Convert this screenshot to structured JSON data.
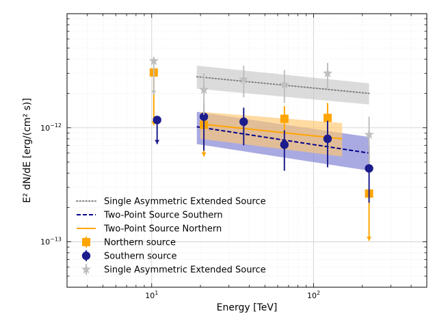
{
  "chart_data": {
    "type": "scatter",
    "title": "",
    "xlabel": "Energy [TeV]",
    "ylabel": "E² dN/dE [erg/(cm² s)]",
    "x_scale": "log",
    "y_scale": "log",
    "xlim": [
      3,
      500
    ],
    "ylim": [
      4e-14,
      1e-11
    ],
    "grid": true,
    "legend_position": "lower-left",
    "x_tick_labels": [
      {
        "value": 10,
        "base": "10",
        "exp": "1"
      },
      {
        "value": 100,
        "base": "10",
        "exp": "2"
      }
    ],
    "y_tick_labels": [
      {
        "value": 1e-13,
        "base": "10",
        "exp": "−13"
      },
      {
        "value": 1e-12,
        "base": "10",
        "exp": "−12"
      }
    ],
    "model_series": [
      {
        "id": "single-model",
        "name": "Single Asymmetric Extended Source",
        "style": "dotted",
        "color": "#808080",
        "band_color": "#c8c8c8",
        "x": [
          19,
          220
        ],
        "y": [
          2.8e-12,
          2e-12
        ],
        "band_low": [
          2.2e-12,
          1.6e-12
        ],
        "band_high": [
          3.5e-12,
          2.45e-12
        ]
      },
      {
        "id": "southern-model",
        "name": "Two-Point Source Southern",
        "style": "dashed",
        "color": "#00008b",
        "band_color": "#7c7cd2",
        "x": [
          19,
          220
        ],
        "y": [
          1.02e-12,
          6e-13
        ],
        "band_low": [
          7.2e-13,
          4.2e-13
        ],
        "band_high": [
          1.38e-12,
          8.3e-13
        ]
      },
      {
        "id": "northern-model",
        "name": "Two-Point Source Northern",
        "style": "solid",
        "color": "#ffa500",
        "band_color": "#ffc870",
        "x": [
          20,
          150
        ],
        "y": [
          1.08e-12,
          8e-13
        ],
        "band_low": [
          8e-13,
          5.6e-13
        ],
        "band_high": [
          1.38e-12,
          1.1e-12
        ]
      }
    ],
    "point_series": [
      {
        "id": "northern-points",
        "name": "Northern source",
        "marker": "square",
        "color": "#ffa500",
        "points": [
          {
            "x": 10.3,
            "y": 3.05e-12,
            "ylow": 1.05e-12,
            "yhigh": 3.05e-12,
            "upper_limit": true
          },
          {
            "x": 21,
            "y": 1.06e-12,
            "ylow": 5.6e-13,
            "yhigh": 1.06e-12,
            "upper_limit": true
          },
          {
            "x": 66,
            "y": 1.2e-12,
            "ylow": 9e-13,
            "yhigh": 1.55e-12,
            "upper_limit": false
          },
          {
            "x": 122,
            "y": 1.22e-12,
            "ylow": 9e-13,
            "yhigh": 1.65e-12,
            "upper_limit": false
          },
          {
            "x": 220,
            "y": 2.65e-13,
            "ylow": 1.02e-13,
            "yhigh": 2.65e-13,
            "upper_limit": true
          }
        ]
      },
      {
        "id": "southern-points",
        "name": "Southern source",
        "marker": "circle",
        "color": "#1c1c8c",
        "points": [
          {
            "x": 10.8,
            "y": 1.17e-12,
            "ylow": 7.2e-13,
            "yhigh": 1.17e-12,
            "upper_limit": true
          },
          {
            "x": 21,
            "y": 1.25e-12,
            "ylow": 6.3e-13,
            "yhigh": 1.65e-12,
            "upper_limit": false
          },
          {
            "x": 37,
            "y": 1.13e-12,
            "ylow": 7e-13,
            "yhigh": 1.5e-12,
            "upper_limit": false
          },
          {
            "x": 66,
            "y": 7.1e-13,
            "ylow": 4.2e-13,
            "yhigh": 9.5e-13,
            "upper_limit": false
          },
          {
            "x": 122,
            "y": 8e-13,
            "ylow": 4.5e-13,
            "yhigh": 1.15e-12,
            "upper_limit": false
          },
          {
            "x": 220,
            "y": 4.4e-13,
            "ylow": 2.2e-13,
            "yhigh": 7e-13,
            "upper_limit": false
          }
        ]
      },
      {
        "id": "single-points",
        "name": "Single Asymmetric Extended Source",
        "marker": "star",
        "color": "#bfbfbf",
        "points": [
          {
            "x": 10.3,
            "y": 3.85e-12,
            "ylow": 1.95e-12,
            "yhigh": 3.85e-12,
            "upper_limit": true
          },
          {
            "x": 21,
            "y": 2.15e-12,
            "ylow": 1.3e-12,
            "yhigh": 3e-12,
            "upper_limit": false
          },
          {
            "x": 37,
            "y": 2.65e-12,
            "ylow": 1.85e-12,
            "yhigh": 3.5e-12,
            "upper_limit": false
          },
          {
            "x": 66,
            "y": 2.4e-12,
            "ylow": 1.65e-12,
            "yhigh": 3.2e-12,
            "upper_limit": false
          },
          {
            "x": 122,
            "y": 3e-12,
            "ylow": 2.15e-12,
            "yhigh": 3.7e-12,
            "upper_limit": false
          },
          {
            "x": 220,
            "y": 8.7e-13,
            "ylow": 4.8e-13,
            "yhigh": 1.25e-12,
            "upper_limit": false
          }
        ]
      }
    ],
    "legend": [
      {
        "name": "Single Asymmetric Extended Source",
        "kind": "line",
        "style": "dotted",
        "color": "#808080"
      },
      {
        "name": "Two-Point Source Southern",
        "kind": "line",
        "style": "dashed",
        "color": "#00008b"
      },
      {
        "name": "Two-Point Source Northern",
        "kind": "line",
        "style": "solid",
        "color": "#ffa500"
      },
      {
        "name": "Northern source",
        "kind": "marker",
        "marker": "square",
        "color": "#ffa500"
      },
      {
        "name": "Southern source",
        "kind": "marker",
        "marker": "circle",
        "color": "#1c1c8c"
      },
      {
        "name": "Single Asymmetric Extended Source",
        "kind": "marker",
        "marker": "star",
        "color": "#bfbfbf"
      }
    ]
  }
}
